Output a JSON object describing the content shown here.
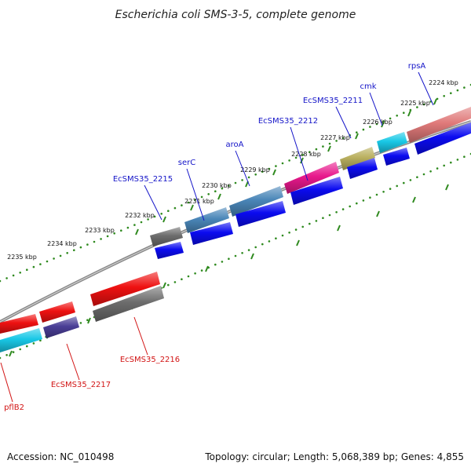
{
  "title": "Escherichia coli SMS-3-5, complete genome",
  "footer": {
    "accession": "Accession: NC_010498",
    "summary": "Topology: circular; Length: 5,068,389 bp; Genes: 4,855"
  },
  "colors": {
    "backbone": "#888888",
    "tick": "#2f8a1f",
    "blue_label": "#1414c8",
    "red_label": "#d21414",
    "cds_blue": "#0b0bf0",
    "cds_red": "#ee1111",
    "cds_cyan": "#19c8e6",
    "cds_gray": "#6d6d6d",
    "cds_steel": "#4a86b8",
    "cds_magenta": "#e8188c",
    "cds_olive": "#bab060",
    "cds_salmon": "#e07a7a",
    "cds_purple": "#4a3e96"
  },
  "ticks": [
    "2224 kbp",
    "2225 kbp",
    "2226 kbp",
    "2227 kbp",
    "2228 kbp",
    "2229 kbp",
    "2230 kbp",
    "2231 kbp",
    "2232 kbp",
    "2233 kbp",
    "2234 kbp",
    "2235 kbp"
  ],
  "genes_forward": [
    {
      "name": "rpsA",
      "color": "cds_salmon"
    },
    {
      "name": "cmk",
      "color": "cds_cyan"
    },
    {
      "name": "EcSMS35_2211",
      "color": "cds_olive"
    },
    {
      "name": "EcSMS35_2212",
      "color": "cds_magenta"
    },
    {
      "name": "aroA",
      "color": "cds_steel"
    },
    {
      "name": "serC",
      "color": "cds_steel"
    },
    {
      "name": "EcSMS35_2215",
      "color": "cds_gray"
    }
  ],
  "genes_reverse": [
    {
      "name": "EcSMS35_2216",
      "color": "cds_red"
    },
    {
      "name": "EcSMS35_2217",
      "color": "cds_purple"
    },
    {
      "name": "pflB2",
      "color": "cds_red"
    }
  ]
}
